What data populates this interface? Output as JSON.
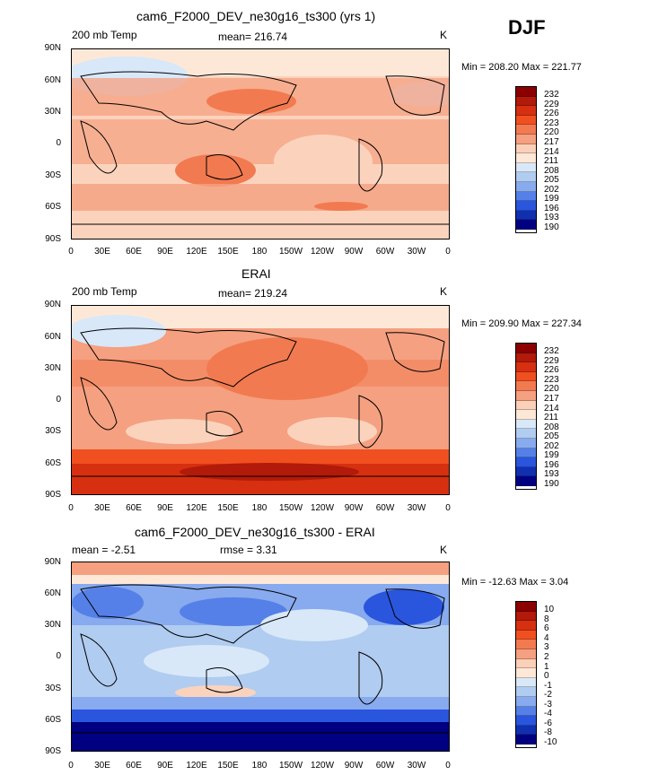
{
  "season": "DJF",
  "panels": [
    {
      "title": "cam6_F2000_DEV_ne30g16_ts300 (yrs 1)",
      "left_sub": "200 mb Temp",
      "center_sub": "mean= 216.74",
      "units": "K",
      "minmax": "Min = 208.20 Max = 221.77",
      "colorbar_labels": [
        "232",
        "229",
        "226",
        "223",
        "220",
        "217",
        "214",
        "211",
        "208",
        "205",
        "202",
        "199",
        "196",
        "193",
        "190"
      ]
    },
    {
      "title": "ERAI",
      "left_sub": "200 mb Temp",
      "center_sub": "mean= 219.24",
      "units": "K",
      "minmax": "Min = 209.90 Max = 227.34",
      "colorbar_labels": [
        "232",
        "229",
        "226",
        "223",
        "220",
        "217",
        "214",
        "211",
        "208",
        "205",
        "202",
        "199",
        "196",
        "193",
        "190"
      ]
    },
    {
      "title": "cam6_F2000_DEV_ne30g16_ts300 - ERAI",
      "left_sub": "mean =   -2.51",
      "center_sub": "rmse =    3.31",
      "units": "K",
      "minmax": "Min = -12.63 Max =    3.04",
      "colorbar_labels": [
        "10",
        "8",
        "6",
        "4",
        "3",
        "2",
        "1",
        "0",
        "-1",
        "-2",
        "-3",
        "-4",
        "-6",
        "-8",
        "-10"
      ]
    }
  ],
  "lat_labels": [
    "90N",
    "60N",
    "30N",
    "0",
    "30S",
    "60S",
    "90S"
  ],
  "lon_labels": [
    "0",
    "30E",
    "60E",
    "90E",
    "120E",
    "150E",
    "180",
    "150W",
    "120W",
    "90W",
    "60W",
    "30W",
    "0"
  ],
  "colorbar_colors": [
    "#8b0000",
    "#b21a0a",
    "#d63010",
    "#f05020",
    "#f27a50",
    "#f5a080",
    "#fbd0b8",
    "#fde8d8",
    "#d8e8f8",
    "#b0ccf0",
    "#88aaee",
    "#5580e8",
    "#2a55dd",
    "#1030b0",
    "#000080"
  ],
  "chart_data": [
    {
      "type": "heatmap",
      "title": "cam6_F2000_DEV_ne30g16_ts300 (yrs 1)",
      "variable": "200 mb Temp",
      "units": "K",
      "season": "DJF",
      "mean": 216.74,
      "min": 208.2,
      "max": 221.77,
      "contour_levels": [
        190,
        193,
        196,
        199,
        202,
        205,
        208,
        211,
        214,
        217,
        220,
        223,
        226,
        229,
        232
      ],
      "xlim": [
        0,
        360
      ],
      "ylim": [
        -90,
        90
      ]
    },
    {
      "type": "heatmap",
      "title": "ERAI",
      "variable": "200 mb Temp",
      "units": "K",
      "season": "DJF",
      "mean": 219.24,
      "min": 209.9,
      "max": 227.34,
      "contour_levels": [
        190,
        193,
        196,
        199,
        202,
        205,
        208,
        211,
        214,
        217,
        220,
        223,
        226,
        229,
        232
      ],
      "xlim": [
        0,
        360
      ],
      "ylim": [
        -90,
        90
      ]
    },
    {
      "type": "heatmap",
      "title": "cam6_F2000_DEV_ne30g16_ts300 - ERAI",
      "units": "K",
      "season": "DJF",
      "mean": -2.51,
      "rmse": 3.31,
      "min": -12.63,
      "max": 3.04,
      "contour_levels": [
        -10,
        -8,
        -6,
        -4,
        -3,
        -2,
        -1,
        0,
        1,
        2,
        3,
        4,
        6,
        8,
        10
      ],
      "xlim": [
        0,
        360
      ],
      "ylim": [
        -90,
        90
      ]
    }
  ]
}
